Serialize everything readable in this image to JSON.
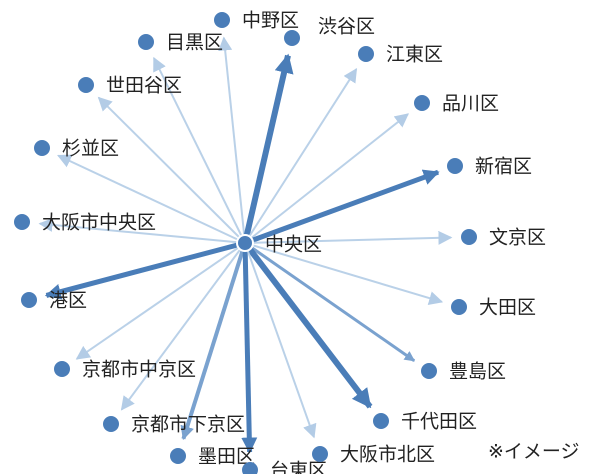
{
  "center": {
    "label": "中央区"
  },
  "nodes": [
    {
      "label": "中野区"
    },
    {
      "label": "渋谷区"
    },
    {
      "label": "目黒区"
    },
    {
      "label": "江東区"
    },
    {
      "label": "世田谷区"
    },
    {
      "label": "品川区"
    },
    {
      "label": "杉並区"
    },
    {
      "label": "新宿区"
    },
    {
      "label": "大阪市中央区"
    },
    {
      "label": "文京区"
    },
    {
      "label": "港区"
    },
    {
      "label": "大田区"
    },
    {
      "label": "京都市中京区"
    },
    {
      "label": "豊島区"
    },
    {
      "label": "京都市下京区"
    },
    {
      "label": "千代田区"
    },
    {
      "label": "墨田区"
    },
    {
      "label": "台東区"
    },
    {
      "label": "大阪市北区"
    }
  ],
  "note": "※イメージ"
}
